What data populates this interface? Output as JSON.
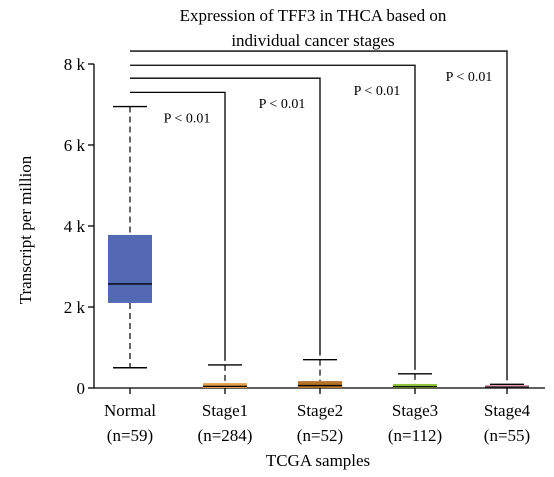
{
  "chart_data": {
    "type": "box",
    "title_lines": [
      "Expression of TFF3 in THCA based on",
      "individual cancer stages"
    ],
    "xlabel": "TCGA samples",
    "ylabel": "Transcript per million",
    "ylim": [
      0,
      8000
    ],
    "yticks": [
      {
        "value": 0,
        "label": "0"
      },
      {
        "value": 2000,
        "label": "2 k"
      },
      {
        "value": 4000,
        "label": "4 k"
      },
      {
        "value": 6000,
        "label": "6 k"
      },
      {
        "value": 8000,
        "label": "8 k"
      }
    ],
    "grid": false,
    "legend": "none",
    "categories": [
      {
        "name": "Normal",
        "n_label": "(n=59)",
        "color": "#5469b4",
        "stats": {
          "whisker_low": 500,
          "q1": 2100,
          "median": 2570,
          "q3": 3780,
          "whisker_high": 6950
        }
      },
      {
        "name": "Stage1",
        "n_label": "(n=284)",
        "color": "#e09c4a",
        "stats": {
          "whisker_low": 0,
          "q1": 0,
          "median": 40,
          "q3": 120,
          "whisker_high": 570
        }
      },
      {
        "name": "Stage2",
        "n_label": "(n=52)",
        "color": "#b5722a",
        "stats": {
          "whisker_low": 0,
          "q1": 0,
          "median": 60,
          "q3": 170,
          "whisker_high": 700
        }
      },
      {
        "name": "Stage3",
        "n_label": "(n=112)",
        "color": "#8fc43e",
        "stats": {
          "whisker_low": 0,
          "q1": 0,
          "median": 30,
          "q3": 100,
          "whisker_high": 350
        }
      },
      {
        "name": "Stage4",
        "n_label": "(n=55)",
        "color": "#e0a0b4",
        "stats": {
          "whisker_low": 0,
          "q1": 0,
          "median": 20,
          "q3": 60,
          "whisker_high": 90
        }
      }
    ],
    "comparisons": [
      {
        "from": "Normal",
        "to": "Stage1",
        "label": "P < 0.01",
        "bracket_y": 7300
      },
      {
        "from": "Normal",
        "to": "Stage2",
        "label": "P < 0.01",
        "bracket_y": 7650
      },
      {
        "from": "Normal",
        "to": "Stage3",
        "label": "P < 0.01",
        "bracket_y": 7970
      },
      {
        "from": "Normal",
        "to": "Stage4",
        "label": "P < 0.01",
        "bracket_y": 8320
      }
    ]
  }
}
